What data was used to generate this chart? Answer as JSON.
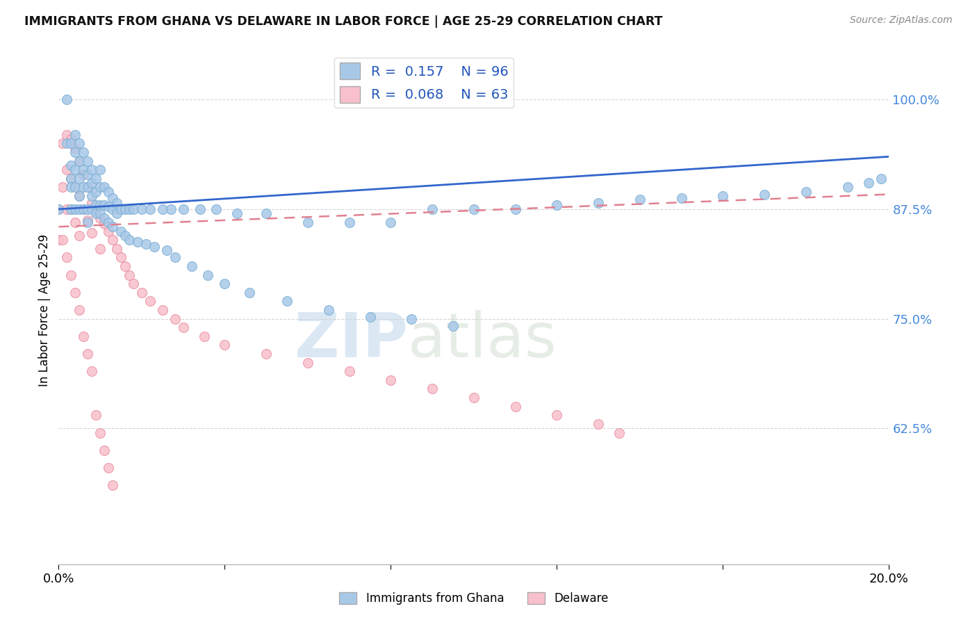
{
  "title": "IMMIGRANTS FROM GHANA VS DELAWARE IN LABOR FORCE | AGE 25-29 CORRELATION CHART",
  "source": "Source: ZipAtlas.com",
  "ylabel": "In Labor Force | Age 25-29",
  "xlim": [
    0.0,
    0.2
  ],
  "ylim": [
    0.47,
    1.05
  ],
  "r_ghana": 0.157,
  "n_ghana": 96,
  "r_delaware": 0.068,
  "n_delaware": 63,
  "ghana_color": "#a8c8e8",
  "ghana_edge_color": "#7bafd4",
  "delaware_color": "#f8c0cc",
  "delaware_edge_color": "#e890a0",
  "ghana_line_color": "#3366cc",
  "delaware_line_color": "#e08090",
  "ghana_scatter_x": [
    0.0,
    0.002,
    0.002,
    0.003,
    0.003,
    0.003,
    0.003,
    0.003,
    0.004,
    0.004,
    0.004,
    0.004,
    0.004,
    0.005,
    0.005,
    0.005,
    0.005,
    0.005,
    0.006,
    0.006,
    0.006,
    0.006,
    0.007,
    0.007,
    0.007,
    0.007,
    0.007,
    0.008,
    0.008,
    0.008,
    0.008,
    0.009,
    0.009,
    0.009,
    0.009,
    0.01,
    0.01,
    0.01,
    0.01,
    0.011,
    0.011,
    0.011,
    0.012,
    0.012,
    0.012,
    0.013,
    0.013,
    0.013,
    0.014,
    0.014,
    0.015,
    0.015,
    0.016,
    0.016,
    0.017,
    0.017,
    0.018,
    0.019,
    0.02,
    0.021,
    0.022,
    0.023,
    0.025,
    0.026,
    0.027,
    0.028,
    0.03,
    0.032,
    0.034,
    0.036,
    0.038,
    0.04,
    0.043,
    0.046,
    0.05,
    0.055,
    0.06,
    0.065,
    0.07,
    0.075,
    0.08,
    0.085,
    0.09,
    0.095,
    0.1,
    0.11,
    0.12,
    0.13,
    0.14,
    0.15,
    0.16,
    0.17,
    0.18,
    0.19,
    0.195,
    0.198
  ],
  "ghana_scatter_y": [
    0.875,
    1.0,
    0.95,
    0.95,
    0.925,
    0.91,
    0.9,
    0.875,
    0.96,
    0.94,
    0.92,
    0.9,
    0.875,
    0.95,
    0.93,
    0.91,
    0.89,
    0.875,
    0.94,
    0.92,
    0.9,
    0.875,
    0.93,
    0.915,
    0.9,
    0.875,
    0.86,
    0.92,
    0.905,
    0.89,
    0.875,
    0.91,
    0.895,
    0.88,
    0.87,
    0.92,
    0.9,
    0.88,
    0.87,
    0.9,
    0.88,
    0.865,
    0.895,
    0.878,
    0.86,
    0.888,
    0.875,
    0.855,
    0.882,
    0.87,
    0.875,
    0.85,
    0.875,
    0.845,
    0.875,
    0.84,
    0.875,
    0.838,
    0.875,
    0.835,
    0.875,
    0.832,
    0.875,
    0.828,
    0.875,
    0.82,
    0.875,
    0.81,
    0.875,
    0.8,
    0.875,
    0.79,
    0.87,
    0.78,
    0.87,
    0.77,
    0.86,
    0.76,
    0.86,
    0.752,
    0.86,
    0.75,
    0.875,
    0.742,
    0.875,
    0.875,
    0.88,
    0.882,
    0.886,
    0.888,
    0.89,
    0.892,
    0.895,
    0.9,
    0.905,
    0.91
  ],
  "delaware_scatter_x": [
    0.0,
    0.0,
    0.001,
    0.001,
    0.001,
    0.002,
    0.002,
    0.002,
    0.002,
    0.003,
    0.003,
    0.003,
    0.003,
    0.004,
    0.004,
    0.004,
    0.004,
    0.005,
    0.005,
    0.005,
    0.005,
    0.006,
    0.006,
    0.006,
    0.007,
    0.007,
    0.007,
    0.008,
    0.008,
    0.008,
    0.009,
    0.009,
    0.01,
    0.01,
    0.01,
    0.011,
    0.011,
    0.012,
    0.012,
    0.013,
    0.013,
    0.014,
    0.015,
    0.016,
    0.017,
    0.018,
    0.02,
    0.022,
    0.025,
    0.028,
    0.03,
    0.035,
    0.04,
    0.05,
    0.06,
    0.07,
    0.08,
    0.09,
    0.1,
    0.11,
    0.12,
    0.13,
    0.135
  ],
  "delaware_scatter_y": [
    0.875,
    0.84,
    0.95,
    0.9,
    0.84,
    0.96,
    0.92,
    0.875,
    0.82,
    0.955,
    0.91,
    0.875,
    0.8,
    0.945,
    0.9,
    0.86,
    0.78,
    0.93,
    0.89,
    0.845,
    0.76,
    0.915,
    0.875,
    0.73,
    0.9,
    0.862,
    0.71,
    0.882,
    0.848,
    0.69,
    0.872,
    0.64,
    0.865,
    0.83,
    0.62,
    0.858,
    0.6,
    0.85,
    0.58,
    0.84,
    0.56,
    0.83,
    0.82,
    0.81,
    0.8,
    0.79,
    0.78,
    0.77,
    0.76,
    0.75,
    0.74,
    0.73,
    0.72,
    0.71,
    0.7,
    0.69,
    0.68,
    0.67,
    0.66,
    0.65,
    0.64,
    0.63,
    0.62
  ],
  "legend_labels": [
    "Immigrants from Ghana",
    "Delaware"
  ],
  "watermark_zip": "ZIP",
  "watermark_atlas": "atlas",
  "background_color": "#ffffff",
  "grid_color": "#cccccc",
  "ytick_vals": [
    0.625,
    0.75,
    0.875,
    1.0
  ],
  "ytick_labels": [
    "62.5%",
    "75.0%",
    "87.5%",
    "100.0%"
  ]
}
